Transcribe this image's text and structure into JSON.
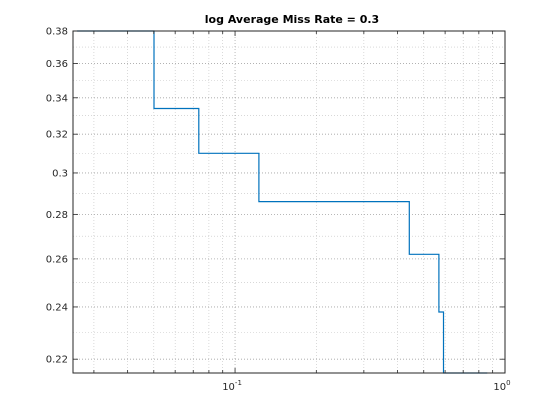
{
  "chart_data": {
    "type": "line",
    "title": "log Average Miss Rate = 0.3",
    "xlabel": "",
    "ylabel": "",
    "x_scale": "log",
    "y_scale": "log",
    "xlim": [
      0.0251,
      1.0
    ],
    "ylim": [
      0.215,
      0.38
    ],
    "grid": "major and minor, dotted",
    "x_ticks": [
      {
        "value": 0.1,
        "base": "10",
        "exp": "-1"
      },
      {
        "value": 1.0,
        "base": "10",
        "exp": "0"
      }
    ],
    "y_ticks": [
      {
        "value": 0.22,
        "label": "0.22"
      },
      {
        "value": 0.24,
        "label": "0.24"
      },
      {
        "value": 0.26,
        "label": "0.26"
      },
      {
        "value": 0.28,
        "label": "0.28"
      },
      {
        "value": 0.3,
        "label": "0.3"
      },
      {
        "value": 0.32,
        "label": "0.32"
      },
      {
        "value": 0.34,
        "label": "0.34"
      },
      {
        "value": 0.36,
        "label": "0.36"
      },
      {
        "value": 0.38,
        "label": "0.38"
      }
    ],
    "series": [
      {
        "color": "#0072bd",
        "style": "stairs",
        "x": [
          0.026,
          0.0501,
          0.0501,
          0.0734,
          0.0734,
          0.1226,
          0.1226,
          0.442,
          0.442,
          0.569,
          0.569,
          0.592,
          0.592,
          0.86
        ],
        "y": [
          0.38,
          0.38,
          0.334,
          0.334,
          0.31,
          0.31,
          0.286,
          0.286,
          0.262,
          0.262,
          0.238,
          0.238,
          0.215,
          0.215
        ]
      }
    ],
    "colors": {
      "axes": "#262626",
      "grid": "#a0a0a0",
      "background": "#ffffff"
    }
  }
}
